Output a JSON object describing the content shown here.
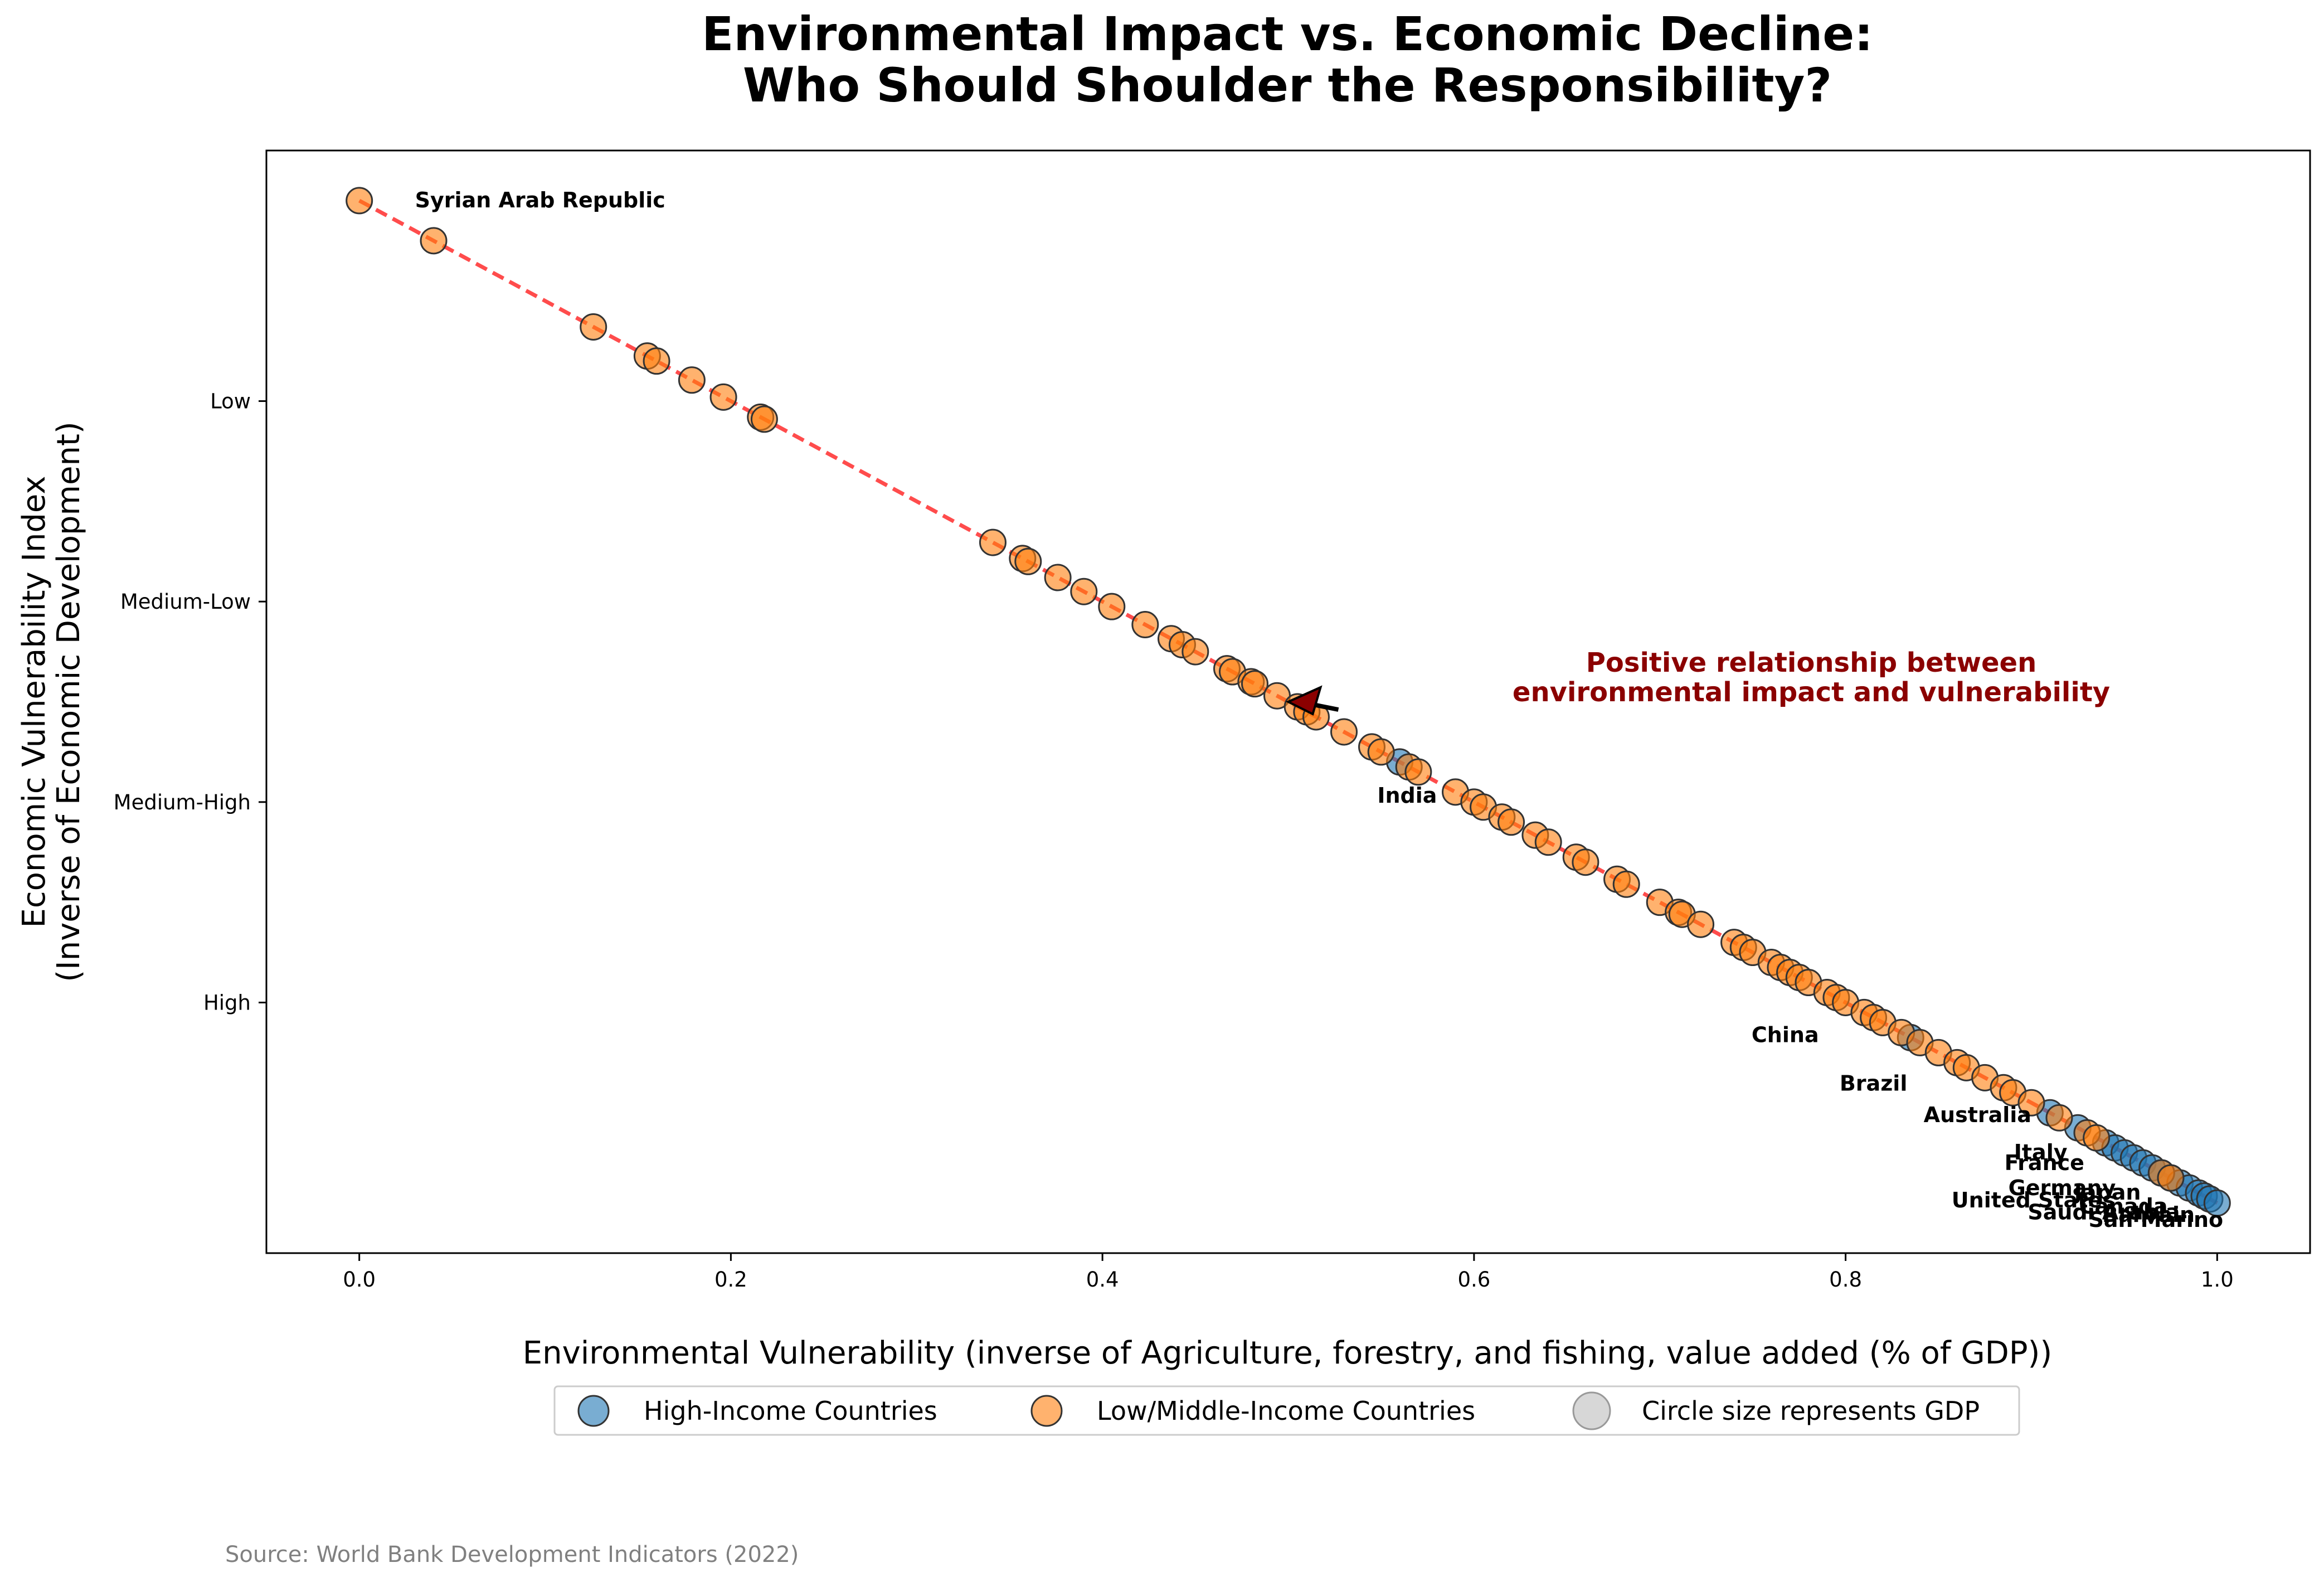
{
  "chart_data": {
    "type": "scatter",
    "title": [
      "Environmental Impact vs. Economic Decline:",
      "Who Should Shoulder the Responsibility?"
    ],
    "xlabel": "Environmental Vulnerability (inverse of Agriculture, forestry, and fishing, value added (% of GDP))",
    "ylabel": [
      "Economic Vulnerability Index",
      "(Inverse of Economic Development)"
    ],
    "xlim": [
      -0.05,
      1.05
    ],
    "ylim": [
      -0.05,
      1.05
    ],
    "x_ticks": [
      0.0,
      0.2,
      0.4,
      0.6,
      0.8,
      1.0
    ],
    "x_tick_labels": [
      "0.0",
      "0.2",
      "0.4",
      "0.6",
      "0.8",
      "1.0"
    ],
    "y_ticks": [
      0.2,
      0.4,
      0.6,
      0.8
    ],
    "y_tick_labels": [
      "High",
      "Medium-High",
      "Medium-Low",
      "Low"
    ],
    "grid": false,
    "legend_position": "bottom-center",
    "trend_line": {
      "x": [
        0.0,
        1.0
      ],
      "y": [
        1.0,
        0.0
      ],
      "color": "#ff0000",
      "style": "dashed"
    },
    "series": [
      {
        "name": "High-Income Countries",
        "color": "#1f77b4",
        "x": [
          0.56,
          0.835,
          0.91,
          0.925,
          0.94,
          0.945,
          0.95,
          0.955,
          0.96,
          0.965,
          0.97,
          0.975,
          0.98,
          0.985,
          0.99,
          0.993,
          0.996,
          1.0
        ],
        "y": [
          0.44,
          0.165,
          0.09,
          0.075,
          0.06,
          0.055,
          0.05,
          0.045,
          0.04,
          0.035,
          0.03,
          0.025,
          0.02,
          0.015,
          0.01,
          0.007,
          0.004,
          0.0
        ]
      },
      {
        "name": "Low/Middle-Income Countries",
        "color": "#ff7f0e",
        "x": [
          0.0,
          0.04,
          0.126,
          0.155,
          0.16,
          0.179,
          0.196,
          0.216,
          0.218,
          0.341,
          0.357,
          0.36,
          0.376,
          0.39,
          0.405,
          0.423,
          0.437,
          0.443,
          0.45,
          0.467,
          0.47,
          0.48,
          0.482,
          0.494,
          0.505,
          0.51,
          0.515,
          0.53,
          0.545,
          0.55,
          0.565,
          0.57,
          0.59,
          0.6,
          0.605,
          0.615,
          0.62,
          0.633,
          0.64,
          0.655,
          0.66,
          0.677,
          0.682,
          0.7,
          0.71,
          0.712,
          0.722,
          0.74,
          0.745,
          0.75,
          0.76,
          0.765,
          0.77,
          0.775,
          0.78,
          0.79,
          0.795,
          0.8,
          0.81,
          0.815,
          0.82,
          0.83,
          0.84,
          0.85,
          0.86,
          0.865,
          0.875,
          0.885,
          0.89,
          0.9,
          0.915,
          0.93,
          0.935,
          0.97,
          0.975
        ],
        "y": [
          1.0,
          0.96,
          0.874,
          0.845,
          0.84,
          0.821,
          0.804,
          0.784,
          0.782,
          0.659,
          0.643,
          0.64,
          0.624,
          0.61,
          0.595,
          0.577,
          0.563,
          0.557,
          0.55,
          0.533,
          0.53,
          0.52,
          0.518,
          0.506,
          0.495,
          0.49,
          0.485,
          0.47,
          0.455,
          0.45,
          0.435,
          0.43,
          0.41,
          0.4,
          0.395,
          0.385,
          0.38,
          0.367,
          0.36,
          0.345,
          0.34,
          0.323,
          0.318,
          0.3,
          0.29,
          0.288,
          0.278,
          0.26,
          0.255,
          0.25,
          0.24,
          0.235,
          0.23,
          0.225,
          0.22,
          0.21,
          0.205,
          0.2,
          0.19,
          0.185,
          0.18,
          0.17,
          0.16,
          0.15,
          0.14,
          0.135,
          0.125,
          0.115,
          0.11,
          0.1,
          0.085,
          0.07,
          0.065,
          0.03,
          0.025
        ]
      }
    ],
    "point_labels": [
      {
        "text": "Syrian Arab Republic",
        "x": 0.0,
        "y": 1.0
      },
      {
        "text": "India",
        "x": 0.57,
        "y": 0.43
      },
      {
        "text": "China",
        "x": 0.82,
        "y": 0.18
      },
      {
        "text": "Brazil",
        "x": 0.86,
        "y": 0.14
      },
      {
        "text": "Australia",
        "x": 0.925,
        "y": 0.075
      },
      {
        "text": "Italy",
        "x": 0.95,
        "y": 0.05
      },
      {
        "text": "France",
        "x": 0.955,
        "y": 0.045
      },
      {
        "text": "Germany",
        "x": 0.975,
        "y": 0.025
      },
      {
        "text": "Japan",
        "x": 0.98,
        "y": 0.02
      },
      {
        "text": "United States",
        "x": 0.985,
        "y": 0.015
      },
      {
        "text": "Canada",
        "x": 0.99,
        "y": 0.01
      },
      {
        "text": "Saudi Arabia",
        "x": 0.993,
        "y": 0.007
      },
      {
        "text": "Bahrain",
        "x": 0.996,
        "y": 0.004
      },
      {
        "text": "San Marino",
        "x": 1.0,
        "y": 0.0
      }
    ],
    "annotation": {
      "text": [
        "Positive relationship between",
        "environmental impact and vulnerability"
      ],
      "arrow_to": {
        "x": 0.5,
        "y": 0.5
      },
      "color": "#8b0000"
    },
    "legend_entries": [
      {
        "label": "High-Income Countries",
        "color": "#1f77b4"
      },
      {
        "label": "Low/Middle-Income Countries",
        "color": "#ff7f0e"
      },
      {
        "label": "Circle size represents GDP",
        "color": "#d3d3d3"
      }
    ]
  },
  "footer": {
    "source": "Source: World Bank Development Indicators (2022)"
  }
}
